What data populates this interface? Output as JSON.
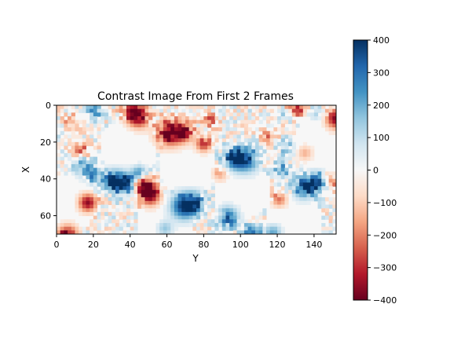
{
  "chart_data": {
    "type": "heatmap",
    "title": "Contrast Image From First 2 Frames",
    "xlabel": "Y",
    "ylabel": "X",
    "xlim": [
      0,
      152
    ],
    "ylim": [
      70,
      0
    ],
    "x_ticks": [
      0,
      20,
      40,
      60,
      80,
      100,
      120,
      140
    ],
    "y_ticks": [
      0,
      20,
      40,
      60
    ],
    "colormap": "RdBu",
    "colorbar": {
      "min": -400,
      "max": 400,
      "ticks": [
        400,
        300,
        200,
        100,
        0,
        -100,
        -200,
        -300,
        -400
      ]
    },
    "pattern": "hexagonal mesh of bright blue and red blobs on near-zero background"
  }
}
